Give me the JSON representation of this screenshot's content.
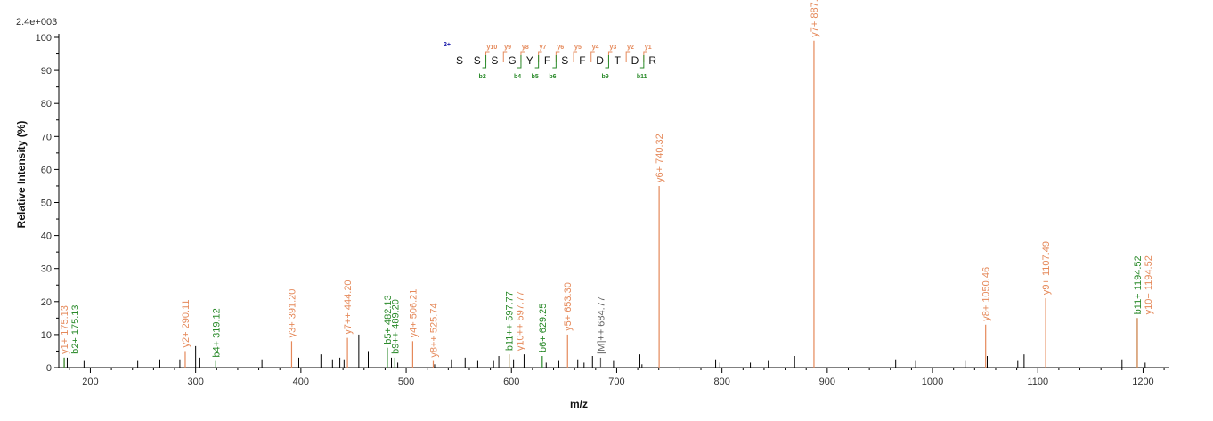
{
  "chart_data": {
    "type": "bar",
    "title": "",
    "scale_label": "2.4e+003",
    "xlabel": "m/z",
    "ylabel": "Relative  Intensity (%)",
    "xlim": [
      170,
      1225
    ],
    "ylim": [
      0,
      100
    ],
    "x_ticks": [
      200,
      300,
      400,
      500,
      600,
      700,
      800,
      900,
      1000,
      1100,
      1200
    ],
    "y_ticks": [
      0,
      10,
      20,
      30,
      40,
      50,
      60,
      70,
      80,
      90,
      100
    ],
    "colors": {
      "y": "#e5895a",
      "b": "#2a8a2a",
      "other": "#666666",
      "noise": "#000000",
      "charge": "#1a1aaa"
    },
    "annotated_peaks": [
      {
        "mz": 175.13,
        "intensity": 3,
        "label": "y1+ 175.13",
        "ion": "y"
      },
      {
        "mz": 175.13,
        "intensity": 3,
        "label": "b2+ 175.13",
        "ion": "b"
      },
      {
        "mz": 290.11,
        "intensity": 5,
        "label": "y2+ 290.11",
        "ion": "y"
      },
      {
        "mz": 319.12,
        "intensity": 2,
        "label": "b4+ 319.12",
        "ion": "b"
      },
      {
        "mz": 391.2,
        "intensity": 8,
        "label": "y3+ 391.20",
        "ion": "y"
      },
      {
        "mz": 444.2,
        "intensity": 9,
        "label": "y7++ 444.20",
        "ion": "y"
      },
      {
        "mz": 482.13,
        "intensity": 6,
        "label": "b5+ 482.13",
        "ion": "b"
      },
      {
        "mz": 489.2,
        "intensity": 3,
        "label": "b9++ 489.20",
        "ion": "b"
      },
      {
        "mz": 506.21,
        "intensity": 8,
        "label": "y4+ 506.21",
        "ion": "y"
      },
      {
        "mz": 525.74,
        "intensity": 2,
        "label": "y8++ 525.74",
        "ion": "y"
      },
      {
        "mz": 597.77,
        "intensity": 4,
        "label": "b11++ 597.77",
        "ion": "b"
      },
      {
        "mz": 597.77,
        "intensity": 4,
        "label": "y10++ 597.77",
        "ion": "y"
      },
      {
        "mz": 629.25,
        "intensity": 3.5,
        "label": "b6+ 629.25",
        "ion": "b"
      },
      {
        "mz": 653.3,
        "intensity": 10,
        "label": "y5+ 653.30",
        "ion": "y"
      },
      {
        "mz": 684.77,
        "intensity": 3,
        "label": "[M]++ 684.77",
        "ion": "other"
      },
      {
        "mz": 740.32,
        "intensity": 55,
        "label": "y6+ 740.32",
        "ion": "y"
      },
      {
        "mz": 887.39,
        "intensity": 99,
        "label": "y7+ 887.39",
        "ion": "y"
      },
      {
        "mz": 1050.46,
        "intensity": 13,
        "label": "y8+ 1050.46",
        "ion": "y"
      },
      {
        "mz": 1107.49,
        "intensity": 21,
        "label": "y9+ 1107.49",
        "ion": "y"
      },
      {
        "mz": 1194.52,
        "intensity": 15,
        "label": "b11+ 1194.52",
        "ion": "b"
      },
      {
        "mz": 1194.52,
        "intensity": 15,
        "label": "y10+ 1194.52",
        "ion": "y"
      }
    ],
    "noise_peaks": [
      [
        178,
        3
      ],
      [
        194,
        2
      ],
      [
        245,
        2
      ],
      [
        266,
        2.5
      ],
      [
        285,
        2.5
      ],
      [
        300,
        6.5
      ],
      [
        304,
        3
      ],
      [
        363,
        2.5
      ],
      [
        398,
        3
      ],
      [
        419,
        4
      ],
      [
        430,
        2.5
      ],
      [
        437,
        3
      ],
      [
        441,
        2.5
      ],
      [
        455,
        10
      ],
      [
        464,
        5
      ],
      [
        486,
        3
      ],
      [
        492,
        1.5
      ],
      [
        527,
        1
      ],
      [
        543,
        2.5
      ],
      [
        556,
        3
      ],
      [
        568,
        2
      ],
      [
        583,
        2
      ],
      [
        588,
        3.5
      ],
      [
        602,
        2.5
      ],
      [
        612,
        4
      ],
      [
        633,
        1.5
      ],
      [
        645,
        2
      ],
      [
        663,
        2.5
      ],
      [
        669,
        1.5
      ],
      [
        677,
        3.5
      ],
      [
        697,
        2
      ],
      [
        722,
        4
      ],
      [
        724,
        1
      ],
      [
        794,
        2.5
      ],
      [
        798,
        1.5
      ],
      [
        827,
        1.5
      ],
      [
        844,
        2
      ],
      [
        869,
        3.5
      ],
      [
        965,
        2.5
      ],
      [
        984,
        2
      ],
      [
        1031,
        2
      ],
      [
        1052,
        3.5
      ],
      [
        1081,
        2
      ],
      [
        1087,
        4
      ],
      [
        1180,
        2.5
      ],
      [
        1202,
        1.5
      ]
    ],
    "sequence": {
      "charge": "2+",
      "residues": [
        "S",
        "S",
        "S",
        "G",
        "Y",
        "F",
        "S",
        "F",
        "D",
        "T",
        "D",
        "R"
      ],
      "y_ions": [
        {
          "after": 2,
          "label": "y10"
        },
        {
          "after": 3,
          "label": "y9"
        },
        {
          "after": 4,
          "label": "y8"
        },
        {
          "after": 5,
          "label": "y7"
        },
        {
          "after": 6,
          "label": "y6"
        },
        {
          "after": 7,
          "label": "y5"
        },
        {
          "after": 8,
          "label": "y4"
        },
        {
          "after": 9,
          "label": "y3"
        },
        {
          "after": 10,
          "label": "y2"
        },
        {
          "after": 11,
          "label": "y1"
        }
      ],
      "b_ions": [
        {
          "after": 2,
          "label": "b2"
        },
        {
          "after": 4,
          "label": "b4"
        },
        {
          "after": 5,
          "label": "b5"
        },
        {
          "after": 6,
          "label": "b6"
        },
        {
          "after": 9,
          "label": "b9"
        },
        {
          "after": 11,
          "label": "b11"
        }
      ]
    }
  }
}
